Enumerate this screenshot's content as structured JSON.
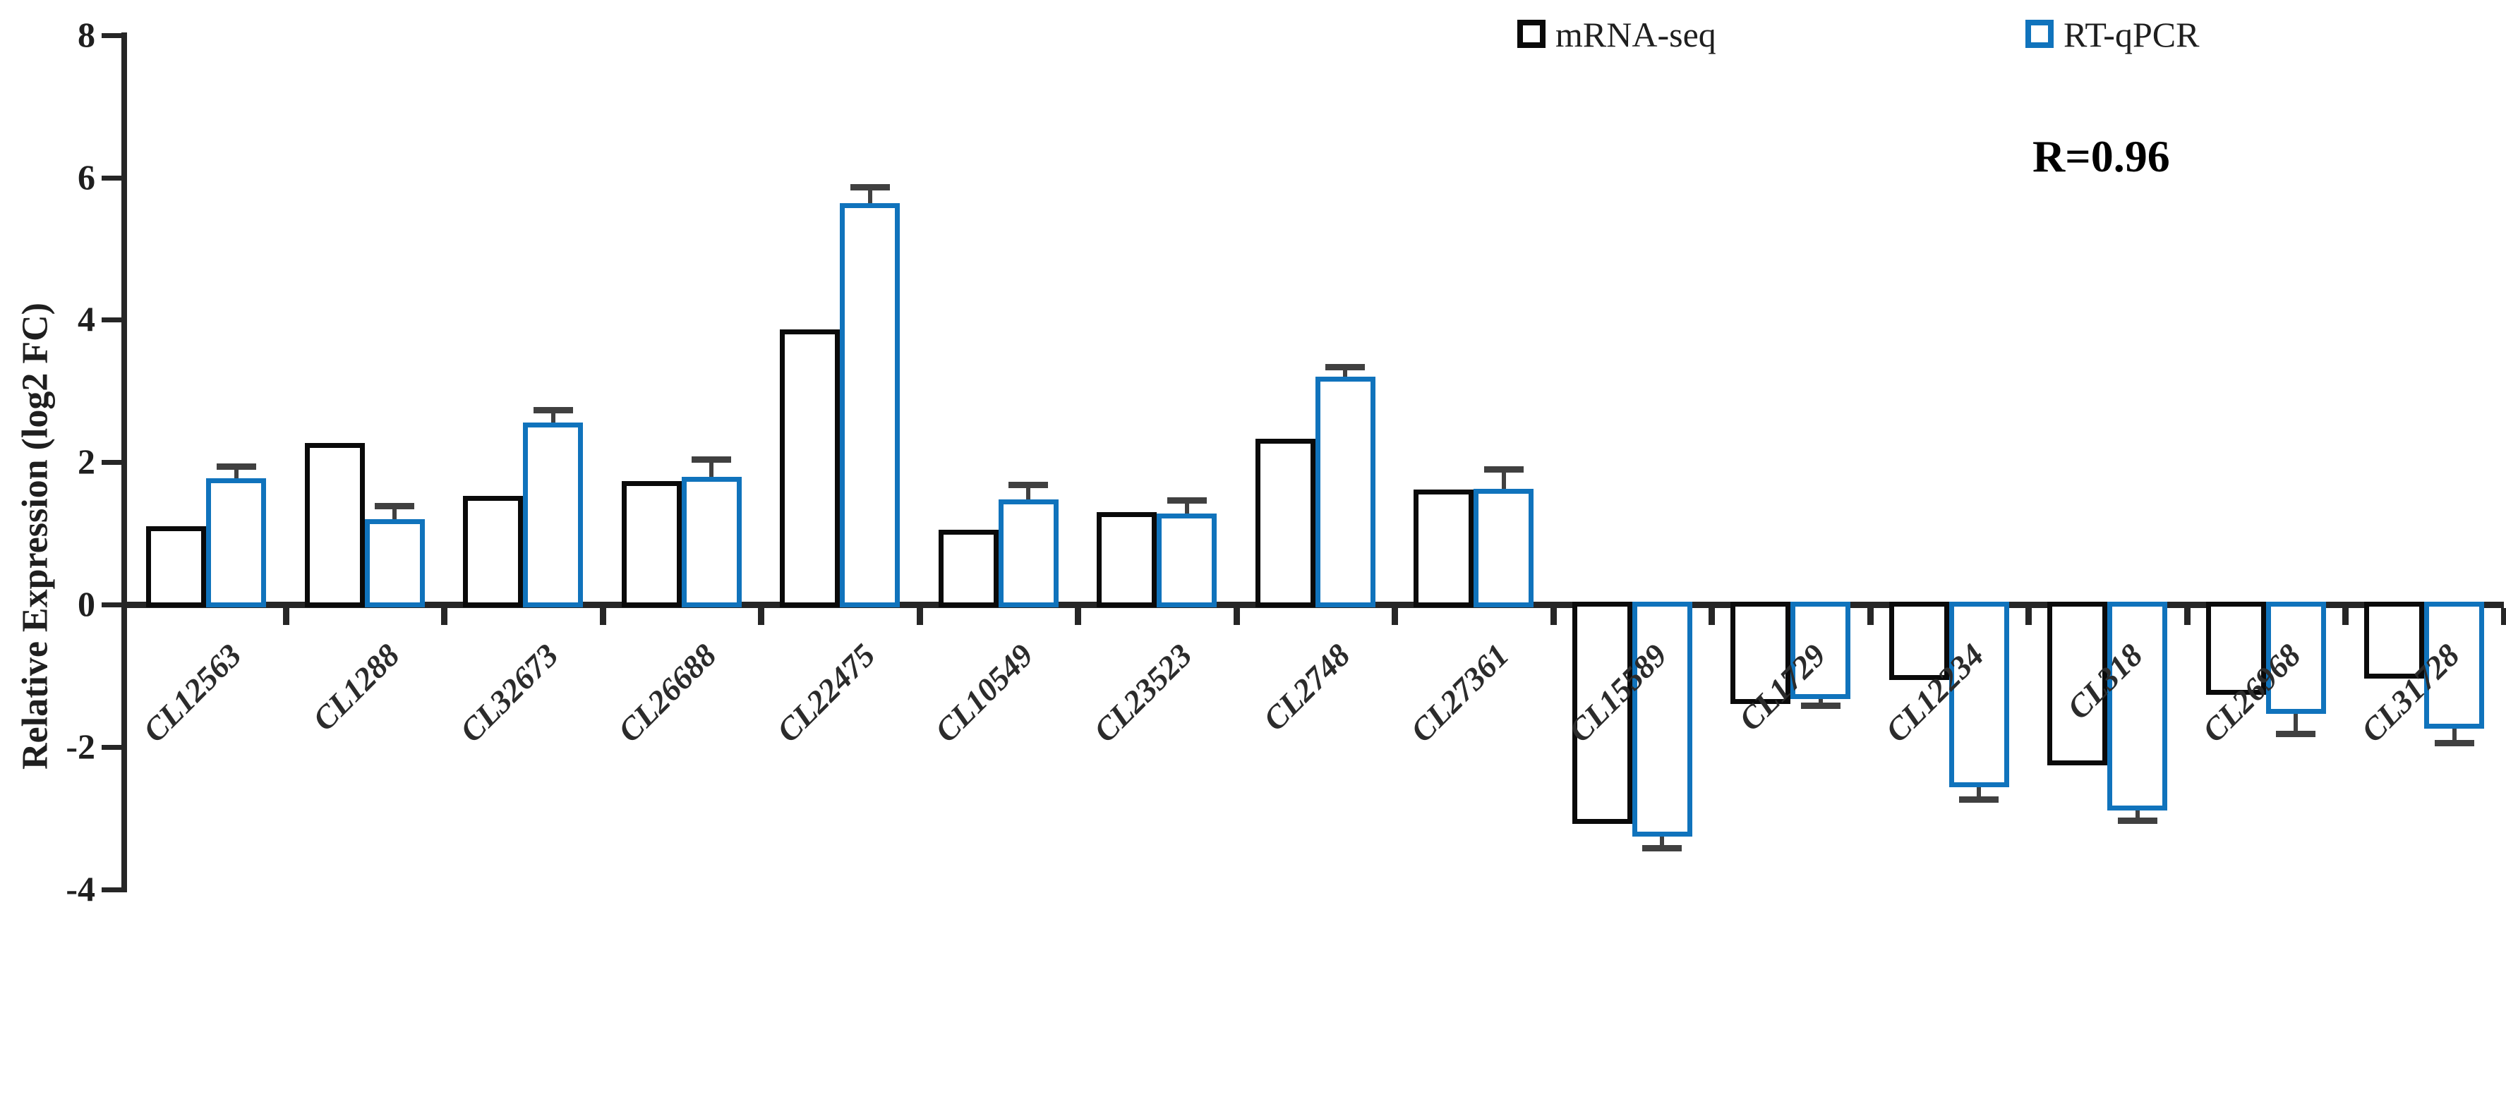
{
  "chart_data": {
    "type": "bar",
    "title": "",
    "xlabel": "",
    "ylabel": "Relative Expression (log2 FC)",
    "ylim": [
      -4,
      8
    ],
    "yticks": [
      8,
      6,
      4,
      2,
      0,
      -2,
      -4
    ],
    "grid": false,
    "legend_position": "top",
    "annotation": "R=0.96",
    "categories": [
      "CL12563",
      "CL1288",
      "CL32673",
      "CL26688",
      "CL22475",
      "CL10549",
      "CL23523",
      "CL2748",
      "CL27361",
      "CL15589",
      "CL1729",
      "CL12234",
      "CL318",
      "CL26968",
      "CL31728"
    ],
    "series": [
      {
        "name": "mRNA-seq",
        "color": "#0a0a0a",
        "values": [
          1.1,
          2.27,
          1.53,
          1.73,
          3.87,
          1.05,
          1.3,
          2.33,
          1.62,
          -3.08,
          -1.4,
          -1.06,
          -2.26,
          -1.27,
          -1.04
        ]
      },
      {
        "name": "RT-qPCR",
        "color": "#1073bc",
        "values": [
          1.77,
          1.2,
          2.56,
          1.79,
          5.64,
          1.48,
          1.28,
          3.2,
          1.63,
          -3.26,
          -1.33,
          -2.57,
          -2.89,
          -1.54,
          -1.74
        ],
        "errors": [
          0.12,
          0.14,
          0.13,
          0.2,
          0.18,
          0.16,
          0.14,
          0.09,
          0.22,
          0.12,
          0.05,
          0.13,
          0.1,
          0.23,
          0.16
        ]
      }
    ],
    "colors": {
      "axis": "#262626",
      "error_bar": "#404040",
      "bar_fill": "#ffffff"
    }
  }
}
